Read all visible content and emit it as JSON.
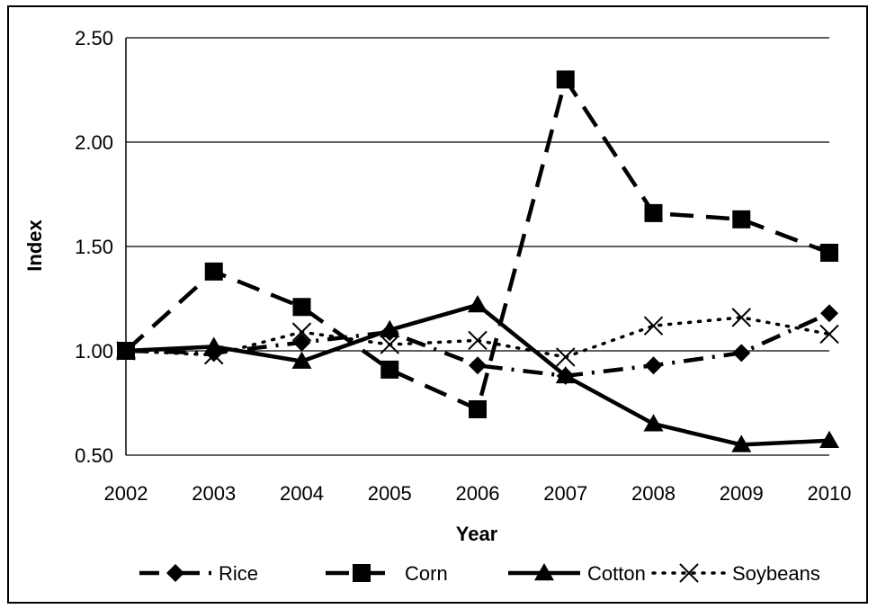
{
  "chart_data": {
    "type": "line",
    "xlabel": "Year",
    "ylabel": "Index",
    "x": [
      "2002",
      "2003",
      "2004",
      "2005",
      "2006",
      "2007",
      "2008",
      "2009",
      "2010"
    ],
    "ylim": [
      0.5,
      2.5
    ],
    "yticks": [
      "0.50",
      "1.00",
      "1.50",
      "2.00",
      "2.50"
    ],
    "grid": "horizontal",
    "legend_position": "bottom",
    "series": [
      {
        "name": "Rice",
        "marker": "diamond",
        "line": "dash-dot",
        "color": "#000000",
        "values": [
          1.0,
          0.99,
          1.04,
          1.09,
          0.93,
          0.88,
          0.93,
          0.99,
          1.18
        ]
      },
      {
        "name": "Corn",
        "marker": "square",
        "line": "long-dash",
        "color": "#000000",
        "values": [
          1.0,
          1.38,
          1.21,
          0.91,
          0.72,
          2.3,
          1.66,
          1.63,
          1.47
        ]
      },
      {
        "name": "Cotton",
        "marker": "triangle",
        "line": "solid",
        "color": "#000000",
        "values": [
          1.0,
          1.02,
          0.95,
          1.1,
          1.22,
          0.88,
          0.65,
          0.55,
          0.57
        ]
      },
      {
        "name": "Soybeans",
        "marker": "x",
        "line": "dotted",
        "color": "#000000",
        "values": [
          1.0,
          0.98,
          1.09,
          1.03,
          1.05,
          0.97,
          1.12,
          1.16,
          1.08
        ]
      }
    ]
  }
}
